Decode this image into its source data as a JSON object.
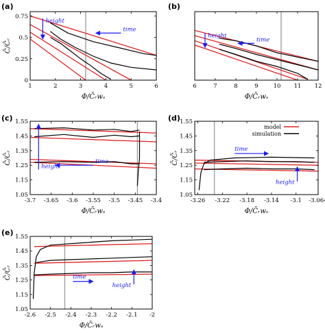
{
  "chart_data": [
    {
      "type": "line",
      "panel_letter": "(a)",
      "xlabel": "Φ/C̄ᵣwₛ",
      "ylabel": "C̄/C̄ᵣ",
      "xlim": [
        1,
        6
      ],
      "ylim": [
        0,
        0.8
      ],
      "xticks": [
        "1",
        "2",
        "3",
        "4",
        "5",
        "6"
      ],
      "yticks": [
        "0",
        "0.25",
        "0.5",
        "0.75"
      ],
      "ytick_values": [
        0,
        0.25,
        0.5,
        0.75
      ],
      "xtick_values": [
        1,
        2,
        3,
        4,
        5,
        6
      ],
      "vline": 3.2,
      "series": [
        {
          "role": "model",
          "x": [
            1,
            6
          ],
          "y": [
            0.75,
            0.29
          ]
        },
        {
          "role": "model",
          "x": [
            1,
            5
          ],
          "y": [
            0.65,
            0.0
          ]
        },
        {
          "role": "model",
          "x": [
            1,
            4
          ],
          "y": [
            0.56,
            0.0
          ]
        },
        {
          "role": "model",
          "x": [
            1,
            3.2
          ],
          "y": [
            0.48,
            0.0
          ]
        },
        {
          "role": "simulation",
          "x": [
            1.8,
            2.5,
            3.5,
            4.5,
            5.5,
            6.0
          ],
          "y": [
            0.67,
            0.55,
            0.45,
            0.38,
            0.31,
            0.29
          ]
        },
        {
          "role": "simulation",
          "x": [
            1.8,
            2.2,
            2.8,
            3.5,
            4.2,
            5.0,
            6.0
          ],
          "y": [
            0.57,
            0.48,
            0.38,
            0.28,
            0.2,
            0.15,
            0.12
          ]
        },
        {
          "role": "simulation",
          "x": [
            1.8,
            2.2,
            2.6,
            3.0,
            3.4,
            3.8,
            4.2
          ],
          "y": [
            0.5,
            0.43,
            0.34,
            0.25,
            0.17,
            0.08,
            0.01
          ]
        }
      ],
      "annotations": [
        {
          "text": "height",
          "arrow": "down",
          "x": 1.5,
          "y_from": 0.72,
          "y_to": 0.48
        },
        {
          "text": "time",
          "arrow": "left",
          "x_from": 4.6,
          "x_to": 3.6,
          "y": 0.55
        }
      ]
    },
    {
      "type": "line",
      "panel_letter": "(b)",
      "xlabel": "Φ/C̄ᵣwₛ",
      "ylabel": "",
      "xlim": [
        6,
        12
      ],
      "ylim": [
        0,
        0.8
      ],
      "xticks": [
        "6",
        "7",
        "8",
        "9",
        "10",
        "11",
        "12"
      ],
      "xtick_values": [
        6,
        7,
        8,
        9,
        10,
        11,
        12
      ],
      "yticks": [],
      "ytick_values": [],
      "vline": 10.2,
      "series": [
        {
          "role": "model",
          "x": [
            6,
            12
          ],
          "y": [
            0.58,
            0.22
          ]
        },
        {
          "role": "model",
          "x": [
            6,
            12
          ],
          "y": [
            0.52,
            0.12
          ]
        },
        {
          "role": "model",
          "x": [
            6,
            11.5
          ],
          "y": [
            0.46,
            0.01
          ]
        },
        {
          "role": "model",
          "x": [
            6,
            11
          ],
          "y": [
            0.41,
            0.0
          ]
        },
        {
          "role": "simulation",
          "x": [
            7.2,
            8.0,
            9.0,
            10.0,
            11.0,
            12.0
          ],
          "y": [
            0.49,
            0.46,
            0.4,
            0.32,
            0.27,
            0.22
          ]
        },
        {
          "role": "simulation",
          "x": [
            7.2,
            8.0,
            9.0,
            10.0,
            11.0,
            12.0
          ],
          "y": [
            0.42,
            0.37,
            0.3,
            0.24,
            0.18,
            0.12
          ]
        },
        {
          "role": "simulation",
          "x": [
            7.2,
            8.0,
            9.0,
            10.0,
            11.0,
            11.5
          ],
          "y": [
            0.36,
            0.3,
            0.22,
            0.16,
            0.08,
            0.01
          ]
        }
      ],
      "annotations": [
        {
          "text": "height",
          "arrow": "down",
          "x": 6.5,
          "y_from": 0.55,
          "y_to": 0.38
        },
        {
          "text": "time",
          "arrow": "left",
          "x_from": 8.9,
          "x_to": 8.1,
          "y": 0.43
        }
      ]
    },
    {
      "type": "line",
      "panel_letter": "(c)",
      "xlabel": "Φ/C̄ᵣwₛ",
      "ylabel": "C̄/C̄ᵣ",
      "xlim": [
        -3.7,
        -3.4
      ],
      "ylim": [
        1.05,
        1.55
      ],
      "xticks": [
        "-3.7",
        "-3.65",
        "-3.6",
        "-3.55",
        "-3.5",
        "-3.45",
        "-3.4"
      ],
      "xtick_values": [
        -3.7,
        -3.65,
        -3.6,
        -3.55,
        -3.5,
        -3.45,
        -3.4
      ],
      "yticks": [
        "1.05",
        "1.15",
        "1.25",
        "1.35",
        "1.45",
        "1.55"
      ],
      "ytick_values": [
        1.05,
        1.15,
        1.25,
        1.35,
        1.45,
        1.55
      ],
      "vline": -3.445,
      "series": [
        {
          "role": "model",
          "x": [
            -3.7,
            -3.4
          ],
          "y": [
            1.5,
            1.47
          ]
        },
        {
          "role": "model",
          "x": [
            -3.7,
            -3.4
          ],
          "y": [
            1.44,
            1.41
          ]
        },
        {
          "role": "model",
          "x": [
            -3.7,
            -3.4
          ],
          "y": [
            1.29,
            1.26
          ]
        },
        {
          "role": "model",
          "x": [
            -3.7,
            -3.4
          ],
          "y": [
            1.27,
            1.23
          ]
        },
        {
          "role": "simulation",
          "x": [
            -3.69,
            -3.62,
            -3.55,
            -3.5,
            -3.46,
            -3.44
          ],
          "y": [
            1.5,
            1.505,
            1.49,
            1.495,
            1.48,
            1.49
          ]
        },
        {
          "role": "simulation",
          "x": [
            -3.69,
            -3.62,
            -3.55,
            -3.5,
            -3.46,
            -3.44
          ],
          "y": [
            1.445,
            1.46,
            1.44,
            1.455,
            1.445,
            1.45
          ]
        },
        {
          "role": "simulation",
          "x": [
            -3.69,
            -3.62,
            -3.55,
            -3.5,
            -3.46,
            -3.44
          ],
          "y": [
            1.27,
            1.275,
            1.27,
            1.275,
            1.26,
            1.26
          ]
        },
        {
          "role": "simulation",
          "x": [
            -3.44,
            -3.44,
            -3.443,
            -3.445
          ],
          "y": [
            1.48,
            1.3,
            1.2,
            1.11
          ]
        }
      ],
      "annotations": [
        {
          "text": "height",
          "arrow": "up",
          "x": -3.68,
          "y_from": 1.22,
          "y_to": 1.53
        },
        {
          "text": "time",
          "arrow": "left",
          "x_from": -3.55,
          "x_to": -3.64,
          "y": 1.25
        }
      ]
    },
    {
      "type": "line",
      "panel_letter": "(d)",
      "xlabel": "Φ/C̄ᵣwₛ",
      "ylabel": "C̄/C̄ᵣ",
      "xlim": [
        -3.265,
        -3.064
      ],
      "ylim": [
        1.05,
        1.55
      ],
      "xticks": [
        "-3.26",
        "-3.22",
        "-3.18",
        "-3.14",
        "-3.1",
        "-3.064"
      ],
      "xtick_values": [
        -3.26,
        -3.22,
        -3.18,
        -3.14,
        -3.1,
        -3.064
      ],
      "yticks": [
        "1.05",
        "1.15",
        "1.25",
        "1.35",
        "1.45",
        "1.55"
      ],
      "ytick_values": [
        1.05,
        1.15,
        1.25,
        1.35,
        1.45,
        1.55
      ],
      "vline": -3.233,
      "legend": {
        "placement": "top-right",
        "entries": [
          "model",
          "simulation"
        ]
      },
      "series": [
        {
          "role": "model",
          "name": "model",
          "x": [
            -3.265,
            -3.064
          ],
          "y": [
            1.285,
            1.27
          ]
        },
        {
          "role": "model",
          "x": [
            -3.265,
            -3.064
          ],
          "y": [
            1.265,
            1.25
          ]
        },
        {
          "role": "model",
          "x": [
            -3.265,
            -3.064
          ],
          "y": [
            1.225,
            1.21
          ]
        },
        {
          "role": "simulation",
          "name": "simulation",
          "x": [
            -3.258,
            -3.255,
            -3.25,
            -3.24,
            -3.2,
            -3.14,
            -3.07
          ],
          "y": [
            1.08,
            1.2,
            1.26,
            1.285,
            1.3,
            1.305,
            1.3
          ]
        },
        {
          "role": "simulation",
          "x": [
            -3.25,
            -3.22,
            -3.18,
            -3.14,
            -3.1,
            -3.07
          ],
          "y": [
            1.27,
            1.275,
            1.28,
            1.275,
            1.275,
            1.27
          ]
        },
        {
          "role": "simulation",
          "x": [
            -3.25,
            -3.22,
            -3.18,
            -3.14,
            -3.1,
            -3.07
          ],
          "y": [
            1.22,
            1.225,
            1.23,
            1.225,
            1.225,
            1.22
          ]
        }
      ],
      "annotations": [
        {
          "text": "time",
          "arrow": "right",
          "x_from": -3.2,
          "x_to": -3.145,
          "y": 1.33
        },
        {
          "text": "height",
          "arrow": "up",
          "x": -3.098,
          "y_from": 1.14,
          "y_to": 1.24
        }
      ]
    },
    {
      "type": "line",
      "panel_letter": "(e)",
      "xlabel": "Φ/C̄ᵣwₛ",
      "ylabel": "C̄/C̄ᵣ",
      "xlim": [
        -2.6,
        -2.0
      ],
      "ylim": [
        1.05,
        1.55
      ],
      "xticks": [
        "-2.6",
        "-2.5",
        "-2.4",
        "-2.3",
        "-2.2",
        "-2.1",
        "-2"
      ],
      "xtick_values": [
        -2.6,
        -2.5,
        -2.4,
        -2.3,
        -2.2,
        -2.1,
        -2.0
      ],
      "yticks": [
        "1.05",
        "1.15",
        "1.25",
        "1.35",
        "1.45",
        "1.55"
      ],
      "ytick_values": [
        1.05,
        1.15,
        1.25,
        1.35,
        1.45,
        1.55
      ],
      "vline": -2.43,
      "series": [
        {
          "role": "model",
          "x": [
            -2.58,
            -2.0
          ],
          "y": [
            1.48,
            1.5
          ]
        },
        {
          "role": "model",
          "x": [
            -2.58,
            -2.0
          ],
          "y": [
            1.365,
            1.385
          ]
        },
        {
          "role": "model",
          "x": [
            -2.58,
            -2.0
          ],
          "y": [
            1.28,
            1.29
          ]
        },
        {
          "role": "simulation",
          "x": [
            -2.585,
            -2.58,
            -2.57,
            -2.55,
            -2.5,
            -2.4,
            -2.3,
            -2.2,
            -2.1,
            -2.0
          ],
          "y": [
            1.12,
            1.3,
            1.41,
            1.46,
            1.49,
            1.5,
            1.51,
            1.52,
            1.525,
            1.53
          ]
        },
        {
          "role": "simulation",
          "x": [
            -2.57,
            -2.5,
            -2.4,
            -2.3,
            -2.2,
            -2.1,
            -2.0
          ],
          "y": [
            1.37,
            1.385,
            1.39,
            1.395,
            1.4,
            1.405,
            1.41
          ]
        },
        {
          "role": "simulation",
          "x": [
            -2.58,
            -2.5,
            -2.4,
            -2.3,
            -2.2,
            -2.1,
            -2.0
          ],
          "y": [
            1.285,
            1.29,
            1.295,
            1.3,
            1.3,
            1.305,
            1.305
          ]
        }
      ],
      "annotations": [
        {
          "text": "time",
          "arrow": "right",
          "x_from": -2.39,
          "x_to": -2.29,
          "y": 1.24
        },
        {
          "text": "height",
          "arrow": "up",
          "x": -2.09,
          "y_from": 1.22,
          "y_to": 1.32
        }
      ]
    }
  ],
  "colors": {
    "model": "#e02020",
    "simulation": "#000000",
    "annotation": "#1a1aff",
    "vline": "#a0a0a0"
  }
}
